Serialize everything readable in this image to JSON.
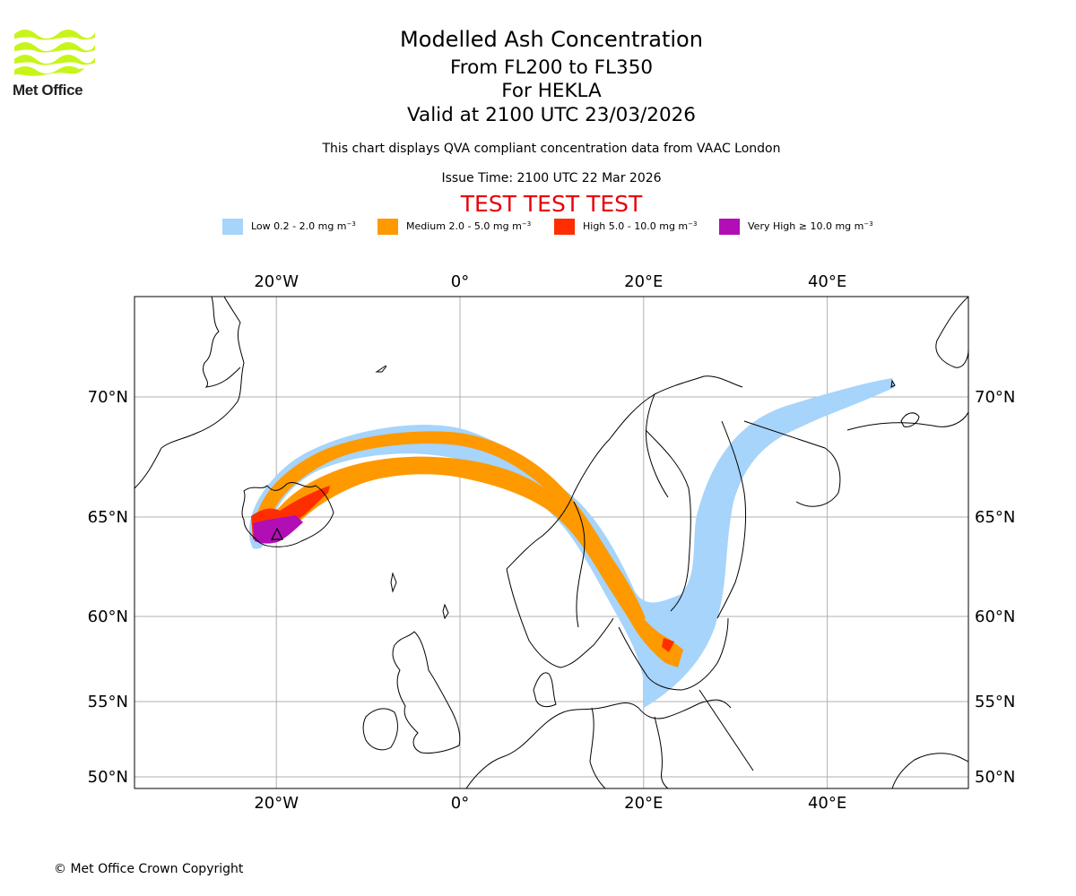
{
  "logo": {
    "text": "Met Office",
    "colors": {
      "waves": "#c7f51a",
      "text": "#222222"
    }
  },
  "header": {
    "title": "Modelled Ash Concentration",
    "level_range": "From FL200 to FL350",
    "volcano": "For HEKLA",
    "valid_time": "Valid at 2100 UTC 23/03/2026",
    "description": "This chart displays QVA compliant concentration data from VAAC London",
    "issue_time": "Issue Time: 2100 UTC 22 Mar 2026",
    "test_banner": "TEST TEST TEST"
  },
  "legend": [
    {
      "label": "Low 0.2 - 2.0 mg m",
      "unit_exp": "−3",
      "color": "#a6d4fb"
    },
    {
      "label": "Medium 2.0 - 5.0 mg m",
      "unit_exp": "−3",
      "color": "#ff9900"
    },
    {
      "label": "High 5.0 - 10.0 mg m",
      "unit_exp": "−3",
      "color": "#ff2e00"
    },
    {
      "label": "Very High ≥ 10.0 mg m",
      "unit_exp": "−3",
      "color": "#b10eb5"
    }
  ],
  "map": {
    "lon_labels": [
      "20°W",
      "0°",
      "20°E",
      "40°E"
    ],
    "lat_labels": [
      "70°N",
      "65°N",
      "60°N",
      "55°N",
      "50°N"
    ],
    "lon_values": [
      -20,
      0,
      20,
      40
    ],
    "lat_values": [
      70,
      65,
      60,
      55,
      50
    ],
    "extent": {
      "lon": [
        -35.5,
        55.5
      ],
      "lat": [
        49.5,
        73.5
      ]
    },
    "gridline_color": "#b0b0b0",
    "coast_color": "#000000",
    "ash_levels": [
      "low",
      "medium",
      "high",
      "very_high"
    ]
  },
  "footer": {
    "copyright": "© Met Office Crown Copyright"
  }
}
